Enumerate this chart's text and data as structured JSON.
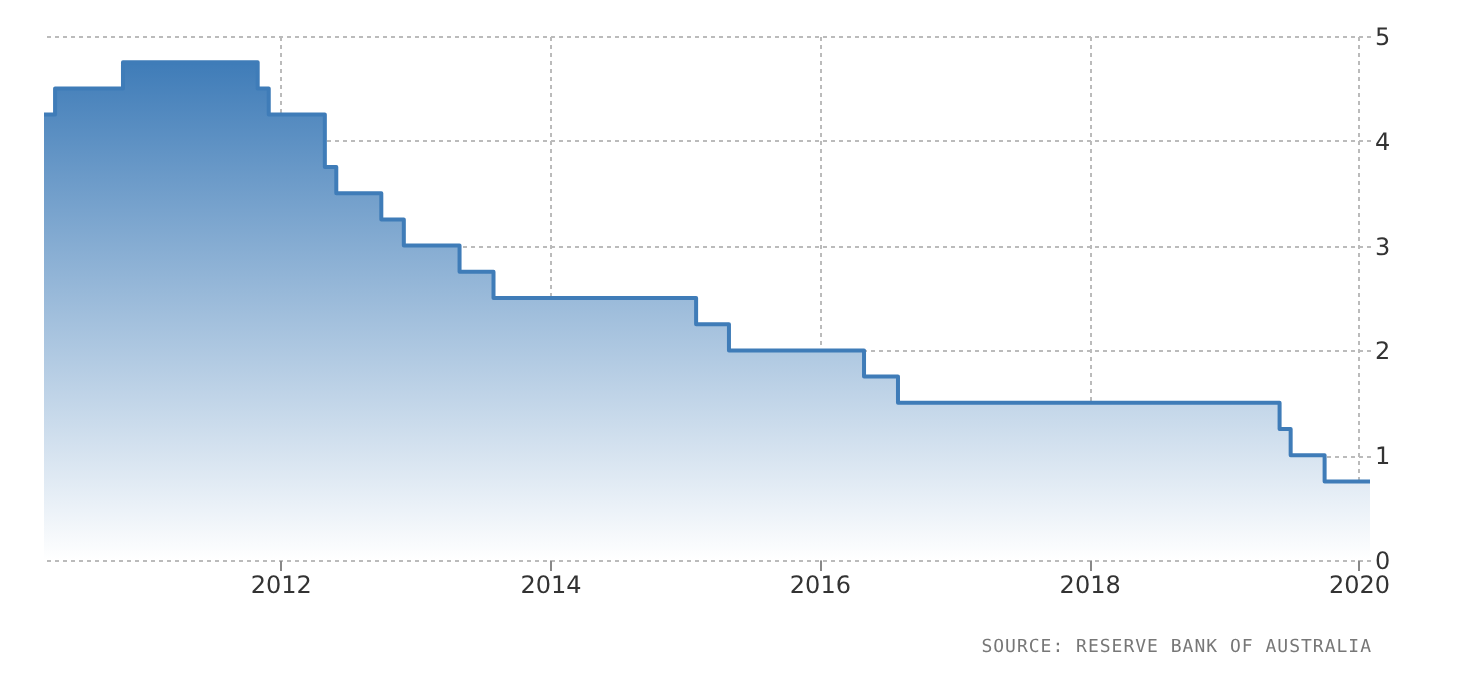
{
  "chart_data": {
    "type": "area",
    "x": [
      "2010-04",
      "2010-05",
      "2010-05",
      "2010-11",
      "2010-11",
      "2011-11",
      "2011-11",
      "2011-12",
      "2011-12",
      "2012-05",
      "2012-05",
      "2012-06",
      "2012-06",
      "2012-10",
      "2012-10",
      "2012-12",
      "2012-12",
      "2013-05",
      "2013-05",
      "2013-08",
      "2013-08",
      "2015-02",
      "2015-02",
      "2015-05",
      "2015-05",
      "2016-05",
      "2016-05",
      "2016-08",
      "2016-08",
      "2019-06",
      "2019-06",
      "2019-07",
      "2019-07",
      "2019-10",
      "2019-10",
      "2020-02"
    ],
    "series": [
      {
        "color": "#3f7cb8",
        "values": [
          4.25,
          4.25,
          4.5,
          4.5,
          4.75,
          4.75,
          4.5,
          4.5,
          4.25,
          4.25,
          3.75,
          3.75,
          3.5,
          3.5,
          3.25,
          3.25,
          3.0,
          3.0,
          2.75,
          2.75,
          2.5,
          2.5,
          2.25,
          2.25,
          2.0,
          2.0,
          1.75,
          1.75,
          1.5,
          1.5,
          1.25,
          1.25,
          1.0,
          1.0,
          0.75,
          0.75
        ]
      }
    ],
    "xlim": [
      "2010-04",
      "2020-02"
    ],
    "xticks": [
      "2012",
      "2014",
      "2016",
      "2018",
      "2020"
    ],
    "ylim": [
      0,
      5
    ],
    "yticks": [
      0,
      1,
      2,
      3,
      4,
      5
    ],
    "grid": true,
    "annotations": [
      "SOURCE: RESERVE BANK OF AUSTRALIA"
    ]
  }
}
